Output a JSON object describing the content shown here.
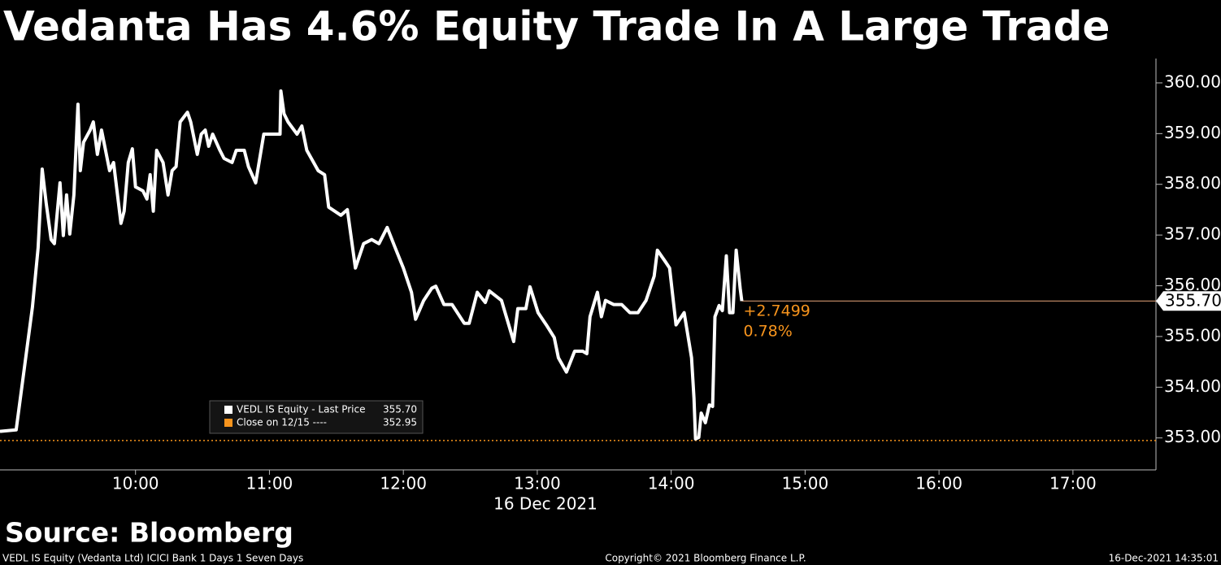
{
  "chart_data": {
    "type": "line",
    "title": "Vedanta Has 4.6% Equity Trade In A Large Trade",
    "x_label": "16 Dec 2021",
    "source": "Source: Bloomberg",
    "footer_left": "VEDL IS Equity (Vedanta Ltd) ICICI Bank 1 Days 1 Seven Days",
    "footer_center": "Copyright© 2021 Bloomberg Finance L.P.",
    "footer_right": "16-Dec-2021 14:35:01",
    "xlim": [
      8.988,
      17.62
    ],
    "ylim": [
      352.37,
      360.48
    ],
    "xticks": [
      {
        "value": 10,
        "label": "10:00"
      },
      {
        "value": 11,
        "label": "11:00"
      },
      {
        "value": 12,
        "label": "12:00"
      },
      {
        "value": 13,
        "label": "13:00"
      },
      {
        "value": 14,
        "label": "14:00"
      },
      {
        "value": 15,
        "label": "15:00"
      },
      {
        "value": 16,
        "label": "16:00"
      },
      {
        "value": 17,
        "label": "17:00"
      }
    ],
    "yticks": [
      {
        "value": 353,
        "label": "353.00"
      },
      {
        "value": 354,
        "label": "354.00"
      },
      {
        "value": 355,
        "label": "355.00"
      },
      {
        "value": 356,
        "label": "356.00"
      },
      {
        "value": 357,
        "label": "357.00"
      },
      {
        "value": 358,
        "label": "358.00"
      },
      {
        "value": 359,
        "label": "359.00"
      },
      {
        "value": 360,
        "label": "360.00"
      }
    ],
    "series": [
      {
        "name": "VEDL IS Equity - Last Price",
        "color": "#ffffff",
        "last_label": "355.70",
        "x": [
          8.988,
          9.109,
          9.23,
          9.273,
          9.303,
          9.333,
          9.37,
          9.394,
          9.436,
          9.461,
          9.485,
          9.509,
          9.54,
          9.57,
          9.588,
          9.612,
          9.661,
          9.685,
          9.715,
          9.746,
          9.806,
          9.836,
          9.891,
          9.915,
          9.946,
          9.976,
          10.0,
          10.055,
          10.085,
          10.109,
          10.133,
          10.158,
          10.206,
          10.243,
          10.273,
          10.303,
          10.333,
          10.388,
          10.412,
          10.461,
          10.491,
          10.521,
          10.546,
          10.576,
          10.63,
          10.661,
          10.721,
          10.752,
          10.812,
          10.843,
          10.897,
          10.958,
          11.079,
          11.085,
          11.109,
          11.139,
          11.206,
          11.242,
          11.279,
          11.364,
          11.412,
          11.442,
          11.533,
          11.582,
          11.642,
          11.703,
          11.764,
          11.818,
          11.879,
          11.939,
          12.0,
          12.061,
          12.091,
          12.152,
          12.212,
          12.242,
          12.303,
          12.364,
          12.455,
          12.491,
          12.552,
          12.612,
          12.642,
          12.733,
          12.824,
          12.855,
          12.915,
          12.946,
          13.006,
          13.067,
          13.127,
          13.158,
          13.218,
          13.279,
          13.339,
          13.37,
          13.394,
          13.449,
          13.479,
          13.509,
          13.57,
          13.63,
          13.691,
          13.752,
          13.812,
          13.873,
          13.897,
          13.958,
          13.988,
          14.036,
          14.097,
          14.152,
          14.17,
          14.182,
          14.206,
          14.224,
          14.255,
          14.285,
          14.309,
          14.327,
          14.358,
          14.382,
          14.412,
          14.436,
          14.461,
          14.485,
          14.515,
          14.527
        ],
        "values": [
          353.13,
          353.16,
          355.58,
          356.75,
          358.3,
          357.63,
          356.91,
          356.83,
          358.03,
          356.99,
          357.79,
          357.02,
          357.79,
          359.58,
          358.27,
          358.83,
          359.07,
          359.23,
          358.59,
          359.07,
          358.27,
          358.43,
          357.23,
          357.47,
          358.43,
          358.7,
          357.95,
          357.87,
          357.71,
          358.19,
          357.47,
          358.67,
          358.43,
          357.79,
          358.27,
          358.35,
          359.23,
          359.42,
          359.23,
          358.59,
          358.99,
          359.07,
          358.75,
          358.99,
          358.67,
          358.51,
          358.43,
          358.67,
          358.67,
          358.35,
          358.03,
          358.99,
          358.99,
          359.84,
          359.39,
          359.23,
          358.99,
          359.15,
          358.67,
          358.27,
          358.19,
          357.55,
          357.39,
          357.5,
          356.35,
          356.83,
          356.91,
          356.83,
          357.15,
          356.75,
          356.35,
          355.87,
          355.34,
          355.71,
          355.95,
          355.99,
          355.63,
          355.63,
          355.26,
          355.26,
          355.87,
          355.67,
          355.9,
          355.71,
          354.9,
          355.55,
          355.55,
          355.98,
          355.47,
          355.23,
          354.98,
          354.58,
          354.3,
          354.71,
          354.71,
          354.66,
          355.39,
          355.87,
          355.39,
          355.71,
          355.63,
          355.63,
          355.47,
          355.47,
          355.71,
          356.19,
          356.7,
          356.47,
          356.35,
          355.23,
          355.47,
          354.58,
          353.78,
          352.98,
          353.01,
          353.49,
          353.3,
          353.65,
          353.62,
          355.39,
          355.61,
          355.51,
          356.59,
          355.47,
          355.47,
          356.7,
          355.95,
          355.7
        ]
      }
    ],
    "reference_line": {
      "name": "Close on 12/15 ----",
      "value": 352.95,
      "color": "#f7941d"
    },
    "change": "+2.7499",
    "change_pct": "0.78%",
    "annotation_color": "#f7941d"
  }
}
